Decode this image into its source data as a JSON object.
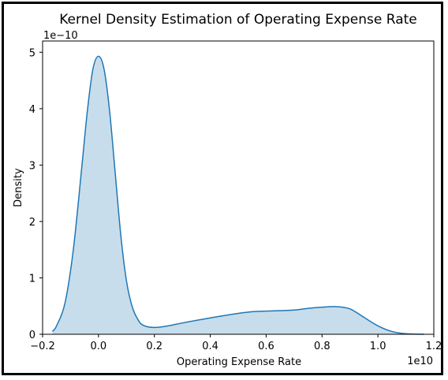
{
  "chart_data": {
    "type": "area",
    "title": "Kernel Density Estimation of Operating Expense Rate",
    "xlabel": "Operating Expense Rate",
    "ylabel": "Density",
    "x_offset_label": "1e10",
    "y_offset_label": "1e−10",
    "xlim": [
      -0.2,
      1.2
    ],
    "ylim": [
      0,
      5.2
    ],
    "xticks": [
      -0.2,
      0.0,
      0.2,
      0.4,
      0.6,
      0.8,
      1.0,
      1.2
    ],
    "xtick_labels": [
      "−0.2",
      "0.0",
      "0.2",
      "0.4",
      "0.6",
      "0.8",
      "1.0",
      "1.2"
    ],
    "yticks": [
      0,
      1,
      2,
      3,
      4,
      5
    ],
    "ytick_labels": [
      "0",
      "1",
      "2",
      "3",
      "4",
      "5"
    ],
    "grid": false,
    "legend": "none",
    "line_color": "#1f77b4",
    "fill_color": "#1f77b4",
    "fill_opacity": 0.25,
    "x": [
      -0.165,
      -0.15,
      -0.12,
      -0.09,
      -0.06,
      -0.04,
      -0.02,
      0.0,
      0.02,
      0.04,
      0.06,
      0.08,
      0.1,
      0.12,
      0.14,
      0.16,
      0.2,
      0.25,
      0.3,
      0.4,
      0.5,
      0.55,
      0.6,
      0.7,
      0.75,
      0.8,
      0.85,
      0.9,
      0.95,
      1.0,
      1.05,
      1.1,
      1.165
    ],
    "y": [
      0.05,
      0.15,
      0.55,
      1.5,
      2.95,
      3.95,
      4.7,
      4.93,
      4.7,
      3.95,
      2.85,
      1.75,
      0.95,
      0.5,
      0.27,
      0.16,
      0.12,
      0.15,
      0.2,
      0.29,
      0.37,
      0.4,
      0.41,
      0.43,
      0.46,
      0.48,
      0.49,
      0.45,
      0.3,
      0.15,
      0.05,
      0.01,
      0.0
    ]
  }
}
